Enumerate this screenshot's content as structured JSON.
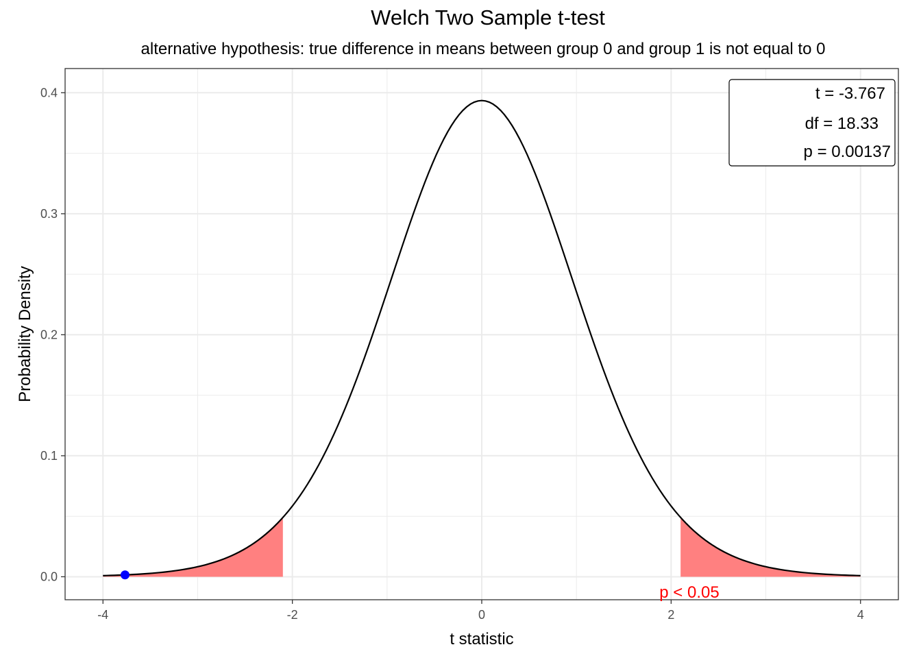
{
  "chart_data": {
    "type": "line",
    "title": "Welch Two Sample t-test",
    "subtitle": "alternative hypothesis: true difference in means between group 0 and group 1 is not equal to 0",
    "xlabel": "t statistic",
    "ylabel": "Probability Density",
    "xlim": [
      -4,
      4
    ],
    "ylim": [
      0,
      0.4
    ],
    "x_ticks": [
      "-4",
      "-2",
      "0",
      "2",
      "4"
    ],
    "y_ticks": [
      "0.0",
      "0.1",
      "0.2",
      "0.3",
      "0.4"
    ],
    "grid": true,
    "distribution": {
      "name": "t",
      "df": 18.33
    },
    "critical_value": 2.1,
    "observed_t": -3.767,
    "stats_box": [
      "t = -3.767",
      "df = 18.33",
      "p = 0.00137"
    ],
    "significance_label": "p < 0.05",
    "colors": {
      "curve": "#000000",
      "rejection_fill": "#ff8080",
      "observed_point": "#0000ff",
      "significance_text": "#ff0000",
      "grid": "#ebebeb"
    }
  }
}
